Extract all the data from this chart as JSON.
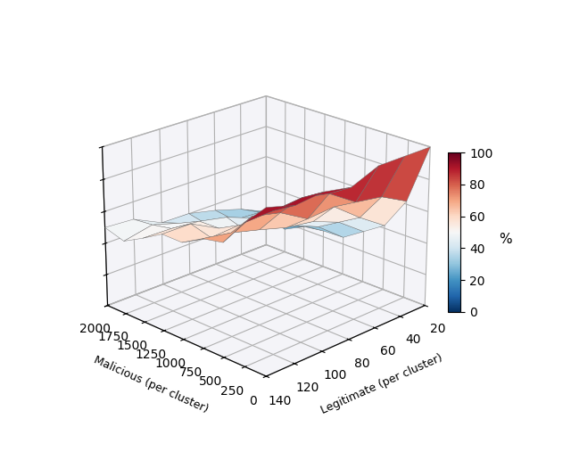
{
  "legitimate_values": [
    20,
    40,
    60,
    80,
    100,
    120,
    140
  ],
  "malicious_values": [
    0,
    250,
    500,
    750,
    1000,
    1250,
    1500,
    1750,
    2000
  ],
  "zlabel": "%",
  "xlabel": "Legitimate (per cluster)",
  "ylabel": "Malicious (per cluster)",
  "zlim": [
    0,
    100
  ],
  "colormap": "RdBu_r",
  "figsize": [
    6.4,
    5.16
  ],
  "dpi": 100,
  "elev": 22,
  "azim": -135,
  "zticks": [
    0,
    20,
    40,
    60,
    80,
    100
  ],
  "vmin": 0,
  "vmax": 100
}
